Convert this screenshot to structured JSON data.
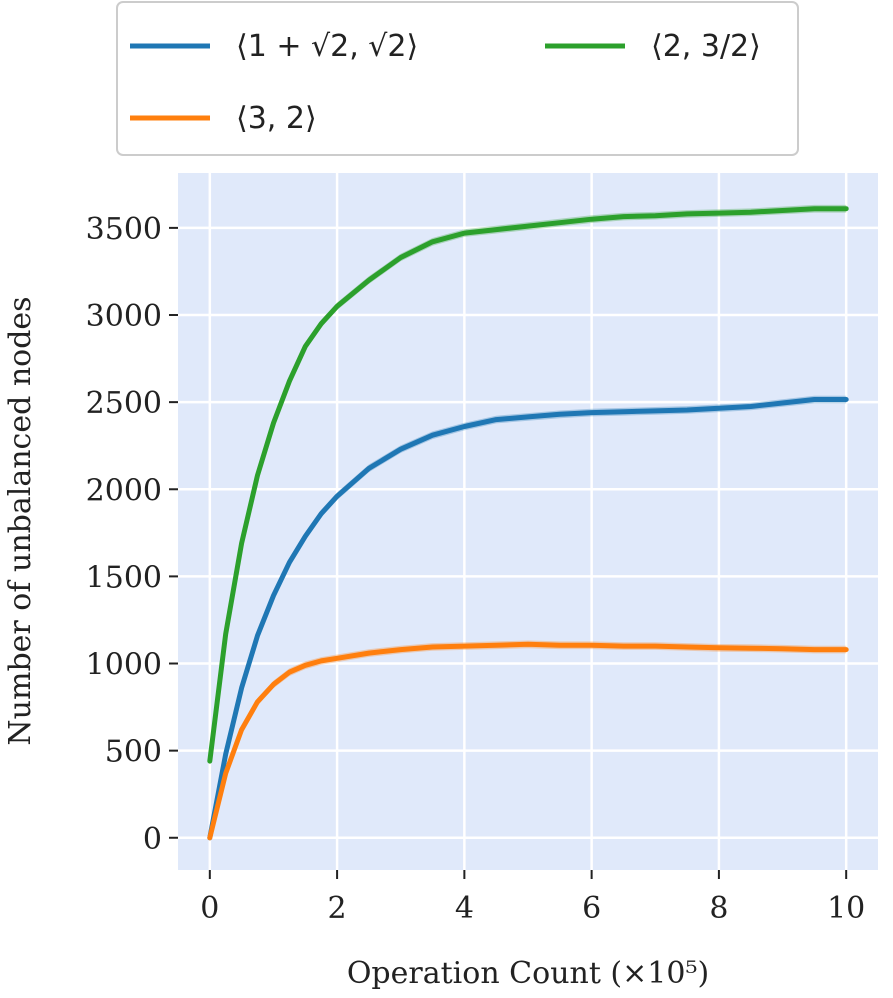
{
  "chart_data": {
    "type": "line",
    "xlabel": "Operation Count (×10⁵)",
    "ylabel": "Number of unbalanced nodes",
    "xlim": [
      -0.5,
      10.5
    ],
    "ylim": [
      -185,
      3815
    ],
    "xticks": [
      0,
      2,
      4,
      6,
      8,
      10
    ],
    "yticks": [
      0,
      500,
      1000,
      1500,
      2000,
      2500,
      3000,
      3500
    ],
    "grid": true,
    "legend_position": "top",
    "background_color": "#e0e9fa",
    "series": [
      {
        "name": "⟨1 + √2, √2⟩",
        "color": "#1f77b4",
        "x": [
          0,
          0.25,
          0.5,
          0.75,
          1,
          1.25,
          1.5,
          1.75,
          2,
          2.5,
          3,
          3.5,
          4,
          4.5,
          5,
          5.5,
          6,
          6.5,
          7,
          7.5,
          8,
          8.5,
          9,
          9.5,
          10
        ],
        "y": [
          0,
          480,
          860,
          1160,
          1390,
          1580,
          1730,
          1860,
          1960,
          2120,
          2230,
          2310,
          2360,
          2400,
          2415,
          2430,
          2440,
          2445,
          2450,
          2455,
          2465,
          2475,
          2495,
          2515,
          2515
        ]
      },
      {
        "name": "⟨2, 3/2⟩",
        "color": "#2ca02c",
        "x": [
          0,
          0.25,
          0.5,
          0.75,
          1,
          1.25,
          1.5,
          1.75,
          2,
          2.5,
          3,
          3.5,
          4,
          4.5,
          5,
          5.5,
          6,
          6.5,
          7,
          7.5,
          8,
          8.5,
          9,
          9.5,
          10
        ],
        "y": [
          440,
          1170,
          1690,
          2080,
          2380,
          2620,
          2820,
          2950,
          3050,
          3200,
          3330,
          3420,
          3470,
          3490,
          3510,
          3530,
          3550,
          3565,
          3570,
          3580,
          3585,
          3590,
          3600,
          3610,
          3610
        ]
      },
      {
        "name": "⟨3, 2⟩",
        "color": "#ff7f0e",
        "x": [
          0,
          0.25,
          0.5,
          0.75,
          1,
          1.25,
          1.5,
          1.75,
          2,
          2.5,
          3,
          3.5,
          4,
          4.5,
          5,
          5.5,
          6,
          6.5,
          7,
          7.5,
          8,
          8.5,
          9,
          9.5,
          10
        ],
        "y": [
          0,
          370,
          620,
          780,
          880,
          950,
          990,
          1015,
          1030,
          1060,
          1080,
          1095,
          1100,
          1105,
          1110,
          1105,
          1105,
          1100,
          1100,
          1095,
          1090,
          1088,
          1085,
          1080,
          1080
        ]
      }
    ]
  }
}
